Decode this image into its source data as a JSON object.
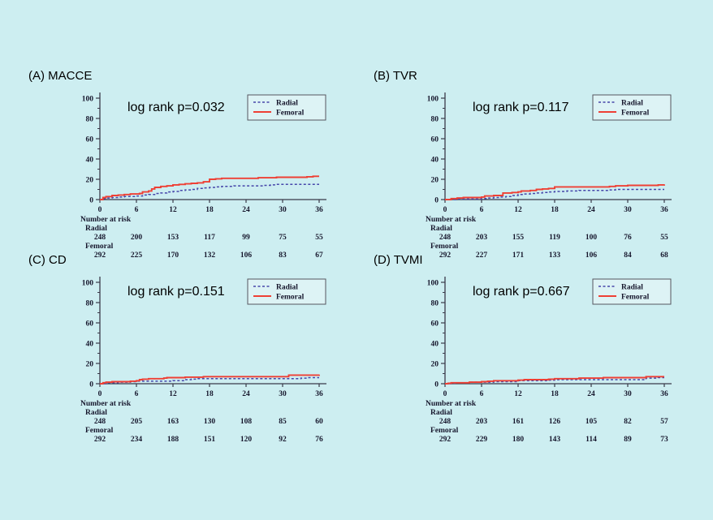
{
  "background": "#cdeef1",
  "colors": {
    "radial": "#4646aa",
    "femoral": "#ee4035",
    "axis": "#3a3a4a",
    "text": "#16162c",
    "legend_fill": "#ddf3f5",
    "legend_border": "#55565f"
  },
  "axes": {
    "xticks": [
      0,
      6,
      12,
      18,
      24,
      30,
      36
    ],
    "yticks": [
      0,
      20,
      40,
      60,
      80,
      100
    ],
    "xmax": 36,
    "ymax": 100,
    "grid": false
  },
  "legend": {
    "position": "top-right",
    "entries": [
      {
        "label": "Radial",
        "style": "dashed",
        "color": "#4646aa"
      },
      {
        "label": "Femoral",
        "style": "solid",
        "color": "#ee4035"
      }
    ]
  },
  "risk_header": "Number at risk",
  "chart_data": [
    {
      "type": "line",
      "label": "(A) MACCE",
      "p_label": "log rank p=0.032",
      "xlabel": "",
      "ylabel": "",
      "xlim": [
        0,
        36
      ],
      "ylim": [
        0,
        100
      ],
      "series": [
        {
          "name": "Radial",
          "style": "dashed",
          "color": "#4646aa",
          "points": [
            [
              0,
              0
            ],
            [
              0.5,
              1
            ],
            [
              1,
              1.5
            ],
            [
              2,
              2
            ],
            [
              3,
              2.5
            ],
            [
              4,
              3
            ],
            [
              6,
              3.5
            ],
            [
              7,
              4.5
            ],
            [
              8,
              5
            ],
            [
              9,
              6
            ],
            [
              10,
              6.5
            ],
            [
              11,
              7.5
            ],
            [
              12,
              8
            ],
            [
              13,
              9
            ],
            [
              14,
              9.5
            ],
            [
              15,
              10
            ],
            [
              16,
              11
            ],
            [
              17,
              11.5
            ],
            [
              18,
              12
            ],
            [
              19,
              12.5
            ],
            [
              20,
              13
            ],
            [
              22,
              13.5
            ],
            [
              27,
              14
            ],
            [
              28,
              14.5
            ],
            [
              29,
              15
            ],
            [
              36,
              15
            ]
          ]
        },
        {
          "name": "Femoral",
          "style": "solid",
          "color": "#ee4035",
          "points": [
            [
              0,
              0
            ],
            [
              0.5,
              2
            ],
            [
              1,
              3
            ],
            [
              2,
              4
            ],
            [
              3,
              4.5
            ],
            [
              4,
              5
            ],
            [
              5,
              5.5
            ],
            [
              6.5,
              6
            ],
            [
              7,
              7.5
            ],
            [
              8,
              8.5
            ],
            [
              8.5,
              10.5
            ],
            [
              9,
              12
            ],
            [
              10,
              13
            ],
            [
              11,
              13.5
            ],
            [
              12,
              14.5
            ],
            [
              13,
              15
            ],
            [
              14,
              15.5
            ],
            [
              15,
              16
            ],
            [
              16,
              16.5
            ],
            [
              17,
              17.5
            ],
            [
              18,
              20
            ],
            [
              19,
              20.5
            ],
            [
              20,
              21
            ],
            [
              26,
              21.5
            ],
            [
              29,
              22
            ],
            [
              34,
              22.5
            ],
            [
              35,
              23
            ],
            [
              36,
              23
            ]
          ]
        }
      ],
      "number_at_risk": {
        "times": [
          0,
          6,
          12,
          18,
          24,
          30,
          36
        ],
        "groups": [
          {
            "name": "Radial",
            "values": [
              248,
              200,
              153,
              117,
              99,
              75,
              55
            ]
          },
          {
            "name": "Femoral",
            "values": [
              292,
              225,
              170,
              132,
              106,
              83,
              67
            ]
          }
        ]
      }
    },
    {
      "type": "line",
      "label": "(B) TVR",
      "p_label": "log rank p=0.117",
      "xlabel": "",
      "ylabel": "",
      "xlim": [
        0,
        36
      ],
      "ylim": [
        0,
        100
      ],
      "series": [
        {
          "name": "Radial",
          "style": "dashed",
          "color": "#4646aa",
          "points": [
            [
              0,
              0
            ],
            [
              2,
              0.5
            ],
            [
              6,
              1
            ],
            [
              7,
              1.5
            ],
            [
              8,
              2
            ],
            [
              9,
              2.5
            ],
            [
              10,
              3
            ],
            [
              11,
              4
            ],
            [
              12,
              5
            ],
            [
              13,
              5.5
            ],
            [
              14,
              6
            ],
            [
              15,
              6.5
            ],
            [
              16,
              7
            ],
            [
              17,
              7.5
            ],
            [
              18,
              8
            ],
            [
              20,
              8.5
            ],
            [
              22,
              9
            ],
            [
              27,
              9.5
            ],
            [
              28,
              10
            ],
            [
              36,
              10
            ]
          ]
        },
        {
          "name": "Femoral",
          "style": "solid",
          "color": "#ee4035",
          "points": [
            [
              0,
              0
            ],
            [
              1,
              1
            ],
            [
              2,
              1.5
            ],
            [
              3,
              2
            ],
            [
              6,
              2.5
            ],
            [
              6.5,
              3.5
            ],
            [
              8,
              4
            ],
            [
              9.5,
              6.5
            ],
            [
              11,
              7
            ],
            [
              12,
              7.5
            ],
            [
              12.5,
              8.5
            ],
            [
              14,
              9
            ],
            [
              15,
              10
            ],
            [
              16,
              10.5
            ],
            [
              17,
              11
            ],
            [
              18,
              12.5
            ],
            [
              27,
              13
            ],
            [
              28,
              13.5
            ],
            [
              30,
              14
            ],
            [
              35,
              14.5
            ],
            [
              36,
              15
            ]
          ]
        }
      ],
      "number_at_risk": {
        "times": [
          0,
          6,
          12,
          18,
          24,
          30,
          36
        ],
        "groups": [
          {
            "name": "Radial",
            "values": [
              248,
              203,
              155,
              119,
              100,
              76,
              55
            ]
          },
          {
            "name": "Femoral",
            "values": [
              292,
              227,
              171,
              133,
              106,
              84,
              68
            ]
          }
        ]
      }
    },
    {
      "type": "line",
      "label": "(C) CD",
      "p_label": "log rank p=0.151",
      "xlabel": "",
      "ylabel": "",
      "xlim": [
        0,
        36
      ],
      "ylim": [
        0,
        100
      ],
      "series": [
        {
          "name": "Radial",
          "style": "dashed",
          "color": "#4646aa",
          "points": [
            [
              0,
              0
            ],
            [
              1,
              1
            ],
            [
              3,
              1.5
            ],
            [
              5,
              2
            ],
            [
              6,
              2.5
            ],
            [
              12,
              3
            ],
            [
              14,
              4
            ],
            [
              15,
              4.5
            ],
            [
              16,
              5
            ],
            [
              32,
              5
            ],
            [
              33,
              5.5
            ],
            [
              34,
              6
            ],
            [
              36,
              6
            ]
          ]
        },
        {
          "name": "Femoral",
          "style": "solid",
          "color": "#ee4035",
          "points": [
            [
              0,
              0
            ],
            [
              0.5,
              1
            ],
            [
              1,
              1.5
            ],
            [
              2,
              2
            ],
            [
              5,
              2.5
            ],
            [
              6,
              3
            ],
            [
              6.5,
              4
            ],
            [
              7,
              4.5
            ],
            [
              8,
              5
            ],
            [
              10.5,
              5.5
            ],
            [
              11,
              6
            ],
            [
              14,
              6.5
            ],
            [
              17,
              7
            ],
            [
              30,
              7
            ],
            [
              31,
              8.5
            ],
            [
              35,
              8.5
            ],
            [
              36,
              9
            ]
          ]
        }
      ],
      "number_at_risk": {
        "times": [
          0,
          6,
          12,
          18,
          24,
          30,
          36
        ],
        "groups": [
          {
            "name": "Radial",
            "values": [
              248,
              205,
              163,
              130,
              108,
              85,
              60
            ]
          },
          {
            "name": "Femoral",
            "values": [
              292,
              234,
              188,
              151,
              120,
              92,
              76
            ]
          }
        ]
      }
    },
    {
      "type": "line",
      "label": "(D) TVMI",
      "p_label": "log rank p=0.667",
      "xlabel": "",
      "ylabel": "",
      "xlim": [
        0,
        36
      ],
      "ylim": [
        0,
        100
      ],
      "series": [
        {
          "name": "Radial",
          "style": "dashed",
          "color": "#4646aa",
          "points": [
            [
              0,
              0
            ],
            [
              1,
              0.5
            ],
            [
              2,
              1
            ],
            [
              4,
              1.5
            ],
            [
              8,
              2
            ],
            [
              12,
              3
            ],
            [
              17,
              3.5
            ],
            [
              18,
              4
            ],
            [
              32,
              4
            ],
            [
              33,
              5.5
            ],
            [
              35,
              6
            ],
            [
              36,
              6
            ]
          ]
        },
        {
          "name": "Femoral",
          "style": "solid",
          "color": "#ee4035",
          "points": [
            [
              0,
              0
            ],
            [
              0.5,
              0.5
            ],
            [
              1,
              1
            ],
            [
              4,
              1.5
            ],
            [
              6,
              2
            ],
            [
              7,
              2.5
            ],
            [
              8,
              3
            ],
            [
              12,
              3.5
            ],
            [
              13,
              4
            ],
            [
              17,
              4.5
            ],
            [
              18,
              5
            ],
            [
              22,
              5.5
            ],
            [
              26,
              6
            ],
            [
              32,
              6
            ],
            [
              33,
              7
            ],
            [
              36,
              7
            ]
          ]
        }
      ],
      "number_at_risk": {
        "times": [
          0,
          6,
          12,
          18,
          24,
          30,
          36
        ],
        "groups": [
          {
            "name": "Radial",
            "values": [
              248,
              203,
              161,
              126,
              105,
              82,
              57
            ]
          },
          {
            "name": "Femoral",
            "values": [
              292,
              229,
              180,
              143,
              114,
              89,
              73
            ]
          }
        ]
      }
    }
  ]
}
